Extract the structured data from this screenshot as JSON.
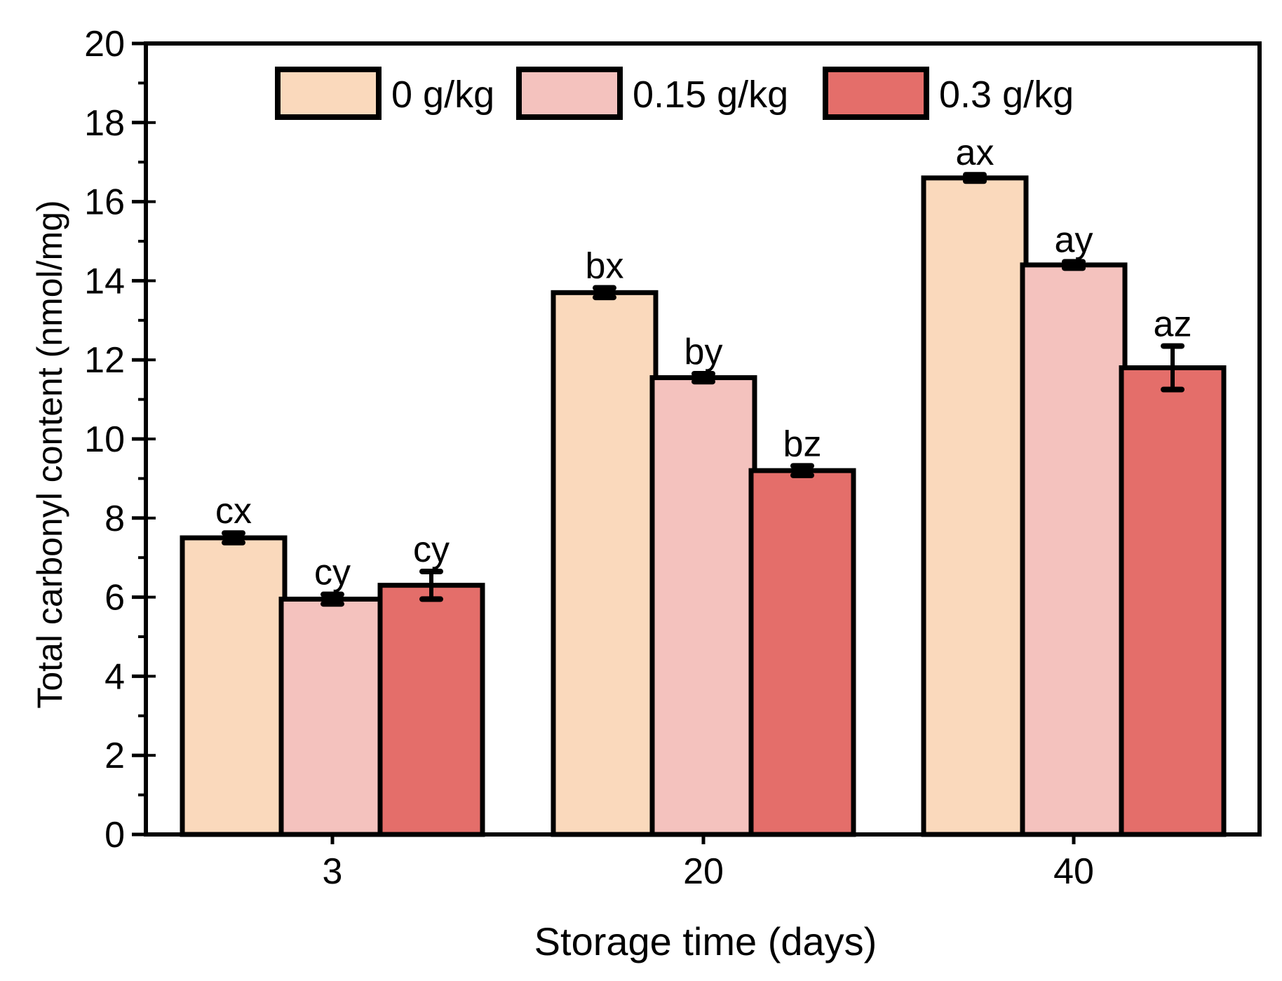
{
  "chart_data": {
    "type": "bar",
    "title": "",
    "xlabel": "Storage time (days)",
    "ylabel": "Total carbonyl content (nmol/mg)",
    "ylim": [
      0,
      20
    ],
    "yticks": [
      0,
      2,
      4,
      6,
      8,
      10,
      12,
      14,
      16,
      18,
      20
    ],
    "categories": [
      "3",
      "20",
      "40"
    ],
    "legend_position": "top",
    "series": [
      {
        "name": "0 g/kg",
        "color": "#FAD9BC",
        "values": [
          7.5,
          13.7,
          16.6
        ],
        "errors": [
          0.12,
          0.12,
          0.08
        ],
        "labels": [
          "cx",
          "bx",
          "ax"
        ]
      },
      {
        "name": "0.15 g/kg",
        "color": "#F4C2BE",
        "values": [
          5.95,
          11.55,
          14.4
        ],
        "errors": [
          0.12,
          0.1,
          0.08
        ],
        "labels": [
          "cy",
          "by",
          "ay"
        ]
      },
      {
        "name": "0.3 g/kg",
        "color": "#E46E6A",
        "values": [
          6.3,
          9.2,
          11.8
        ],
        "errors": [
          0.35,
          0.12,
          0.55
        ],
        "labels": [
          "cy",
          "bz",
          "az"
        ]
      }
    ]
  }
}
